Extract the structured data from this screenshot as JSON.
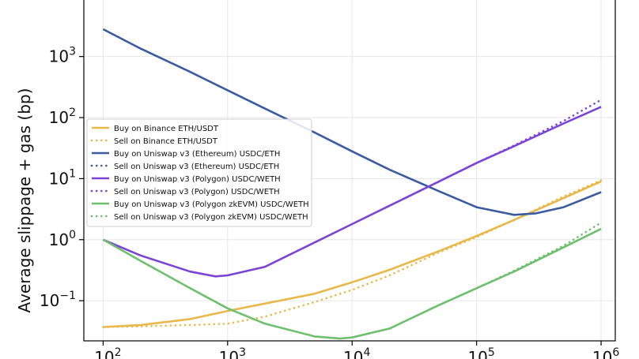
{
  "chart_data": {
    "type": "line",
    "xlabel": "",
    "ylabel": "Average slippage + gas (bp)",
    "x_scale": "log",
    "y_scale": "log",
    "xlim": [
      70,
      1300000
    ],
    "ylim": [
      0.022,
      9500
    ],
    "grid": true,
    "legend_position": "center-left",
    "x_ticks": [
      {
        "value": 100,
        "base": "10",
        "exp": "2"
      },
      {
        "value": 1000,
        "base": "10",
        "exp": "3"
      },
      {
        "value": 10000,
        "base": "10",
        "exp": "4"
      },
      {
        "value": 100000,
        "base": "10",
        "exp": "5"
      },
      {
        "value": 1000000,
        "base": "10",
        "exp": "6"
      }
    ],
    "y_ticks": [
      {
        "value": 0.1,
        "base": "10",
        "exp": "−1"
      },
      {
        "value": 1,
        "base": "10",
        "exp": "0"
      },
      {
        "value": 10,
        "base": "10",
        "exp": "1"
      },
      {
        "value": 100,
        "base": "10",
        "exp": "2"
      },
      {
        "value": 1000,
        "base": "10",
        "exp": "3"
      }
    ],
    "series": [
      {
        "name": "Buy on Binance ETH/USDT",
        "color": "#e8b84a",
        "dash": "solid",
        "x": [
          100,
          200,
          500,
          1000,
          2000,
          5000,
          10000,
          20000,
          50000,
          100000,
          200000,
          500000,
          1000000
        ],
        "y": [
          0.037,
          0.04,
          0.05,
          0.068,
          0.09,
          0.13,
          0.2,
          0.32,
          0.65,
          1.15,
          2.1,
          4.8,
          9
        ]
      },
      {
        "name": "Sell on Binance ETH/USDT",
        "color": "#e8b84a",
        "dash": "dot",
        "x": [
          100,
          200,
          500,
          1000,
          2000,
          5000,
          10000,
          20000,
          50000,
          100000,
          200000,
          500000,
          1000000
        ],
        "y": [
          0.037,
          0.038,
          0.04,
          0.042,
          0.055,
          0.095,
          0.15,
          0.26,
          0.62,
          1.1,
          2.1,
          5.1,
          9.4
        ]
      },
      {
        "name": "Buy on Uniswap v3 (Ethereum) USDC/ETH",
        "color": "#3a5ba0",
        "dash": "solid",
        "x": [
          100,
          200,
          500,
          1000,
          2000,
          5000,
          10000,
          20000,
          50000,
          100000,
          200000,
          300000,
          500000,
          1000000
        ],
        "y": [
          2800,
          1350,
          560,
          280,
          140,
          57,
          28,
          14,
          6.2,
          3.4,
          2.55,
          2.7,
          3.4,
          6
        ]
      },
      {
        "name": "Sell on Uniswap v3 (Ethereum) USDC/ETH",
        "color": "#3a5ba0",
        "dash": "dot",
        "x": [],
        "y": []
      },
      {
        "name": "Buy on Uniswap v3 (Polygon) USDC/WETH",
        "color": "#7b44d6",
        "dash": "solid",
        "x": [
          100,
          200,
          500,
          800,
          1000,
          2000,
          5000,
          10000,
          20000,
          50000,
          100000,
          200000,
          500000,
          1000000
        ],
        "y": [
          1.0,
          0.55,
          0.3,
          0.25,
          0.26,
          0.36,
          0.9,
          1.8,
          3.6,
          9,
          18,
          34,
          80,
          150
        ]
      },
      {
        "name": "Sell on Uniswap v3 (Polygon) USDC/WETH",
        "color": "#7b44d6",
        "dash": "dot",
        "x": [
          50000,
          100000,
          200000,
          500000,
          1000000
        ],
        "y": [
          9,
          18,
          35,
          88,
          195
        ]
      },
      {
        "name": "Buy on Uniswap v3 (Polygon zkEVM) USDC/WETH",
        "color": "#6ec06e",
        "dash": "solid",
        "x": [
          100,
          200,
          500,
          1000,
          2000,
          5000,
          8000,
          10000,
          20000,
          50000,
          100000,
          200000,
          500000,
          1000000
        ],
        "y": [
          1.0,
          0.45,
          0.16,
          0.075,
          0.042,
          0.026,
          0.024,
          0.025,
          0.035,
          0.085,
          0.16,
          0.3,
          0.75,
          1.5
        ]
      },
      {
        "name": "Sell on Uniswap v3 (Polygon zkEVM) USDC/WETH",
        "color": "#6ec06e",
        "dash": "dot",
        "x": [
          50000,
          100000,
          200000,
          500000,
          1000000
        ],
        "y": [
          0.085,
          0.16,
          0.31,
          0.8,
          1.9
        ]
      }
    ]
  }
}
